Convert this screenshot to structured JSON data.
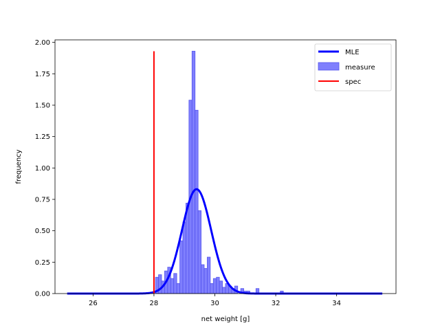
{
  "chart_data": {
    "type": "bar",
    "title": "",
    "xlabel": "net weight [g]",
    "ylabel": "frequency",
    "xlim": [
      24.75,
      35.95
    ],
    "ylim": [
      0,
      2.02
    ],
    "xticks": [
      26,
      28,
      30,
      32,
      34
    ],
    "yticks": [
      0.0,
      0.25,
      0.5,
      0.75,
      1.0,
      1.25,
      1.5,
      1.75,
      2.0
    ],
    "ytick_labels": [
      "0.00",
      "0.25",
      "0.50",
      "0.75",
      "1.00",
      "1.25",
      "1.50",
      "1.75",
      "2.00"
    ],
    "grid": false,
    "legend_position": "top-right",
    "colors": {
      "mle": "#0000ff",
      "measure_fill": "#7f7ffd",
      "measure_edge": "#5555ee",
      "spec": "#ff0000"
    },
    "series": [
      {
        "name": "MLE",
        "kind": "line",
        "mean": 29.4,
        "std": 0.48,
        "x_range": [
          25.15,
          35.5
        ]
      },
      {
        "name": "measure",
        "kind": "histogram",
        "bin_width": 0.1,
        "bins": [
          {
            "x": 28.1,
            "value": 0.13
          },
          {
            "x": 28.2,
            "value": 0.15
          },
          {
            "x": 28.3,
            "value": 0.1
          },
          {
            "x": 28.4,
            "value": 0.18
          },
          {
            "x": 28.5,
            "value": 0.21
          },
          {
            "x": 28.6,
            "value": 0.12
          },
          {
            "x": 28.7,
            "value": 0.16
          },
          {
            "x": 28.8,
            "value": 0.08
          },
          {
            "x": 28.9,
            "value": 0.42
          },
          {
            "x": 29.0,
            "value": 0.57
          },
          {
            "x": 29.1,
            "value": 0.72
          },
          {
            "x": 29.2,
            "value": 1.54
          },
          {
            "x": 29.3,
            "value": 1.93
          },
          {
            "x": 29.4,
            "value": 1.46
          },
          {
            "x": 29.5,
            "value": 0.66
          },
          {
            "x": 29.6,
            "value": 0.23
          },
          {
            "x": 29.7,
            "value": 0.2
          },
          {
            "x": 29.8,
            "value": 0.29
          },
          {
            "x": 29.9,
            "value": 0.08
          },
          {
            "x": 30.0,
            "value": 0.12
          },
          {
            "x": 30.1,
            "value": 0.13
          },
          {
            "x": 30.2,
            "value": 0.1
          },
          {
            "x": 30.3,
            "value": 0.05
          },
          {
            "x": 30.4,
            "value": 0.08
          },
          {
            "x": 30.5,
            "value": 0.06
          },
          {
            "x": 30.6,
            "value": 0.04
          },
          {
            "x": 30.7,
            "value": 0.06
          },
          {
            "x": 30.9,
            "value": 0.04
          },
          {
            "x": 31.0,
            "value": 0.02
          },
          {
            "x": 31.1,
            "value": 0.02
          },
          {
            "x": 31.4,
            "value": 0.04
          },
          {
            "x": 32.2,
            "value": 0.02
          }
        ]
      },
      {
        "name": "spec",
        "kind": "vline",
        "x": 28.0,
        "y_range": [
          0,
          1.93
        ]
      }
    ],
    "legend": [
      "MLE",
      "measure",
      "spec"
    ]
  }
}
